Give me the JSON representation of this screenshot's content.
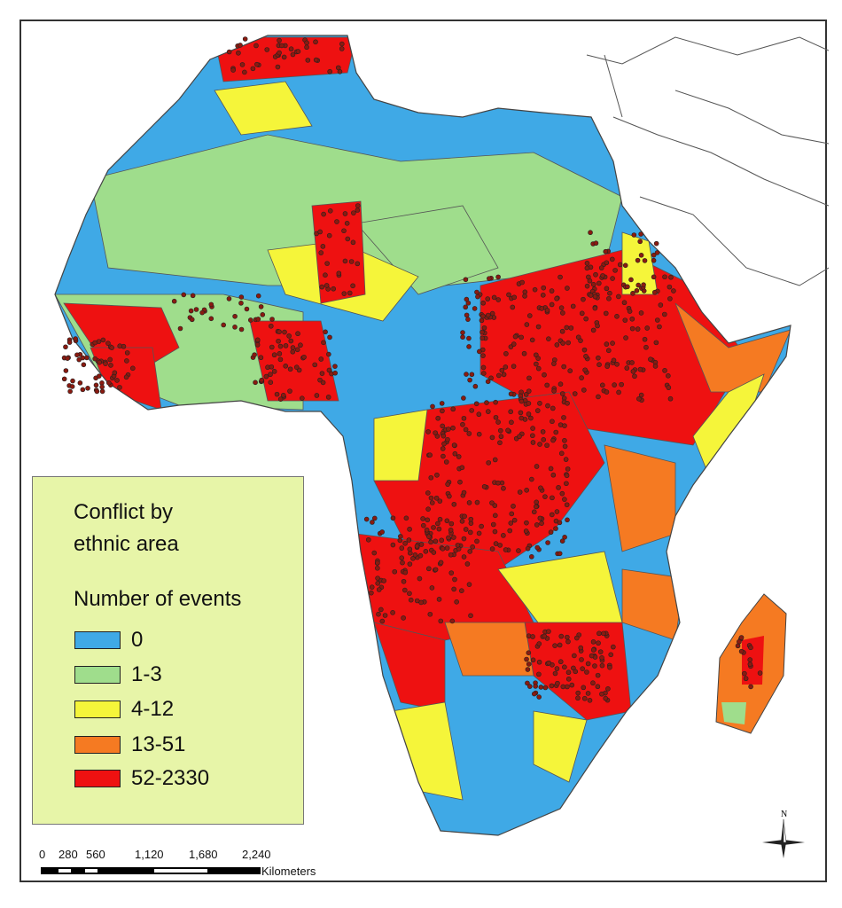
{
  "legend": {
    "title_line1": "Conflict by",
    "title_line2": "ethnic area",
    "subtitle": "Number of events",
    "classes": [
      {
        "label": "0",
        "color": "#3fa9e6"
      },
      {
        "label": "1-3",
        "color": "#9fdd8c"
      },
      {
        "label": "4-12",
        "color": "#f5f53a"
      },
      {
        "label": "13-51",
        "color": "#f57a22"
      },
      {
        "label": "52-2330",
        "color": "#ee1111"
      }
    ]
  },
  "scale_bar": {
    "ticks": [
      "0",
      "280",
      "560",
      "1,120",
      "1,680",
      "2,240"
    ],
    "unit": "Kilometers"
  },
  "north_arrow": {
    "label": "N"
  }
}
